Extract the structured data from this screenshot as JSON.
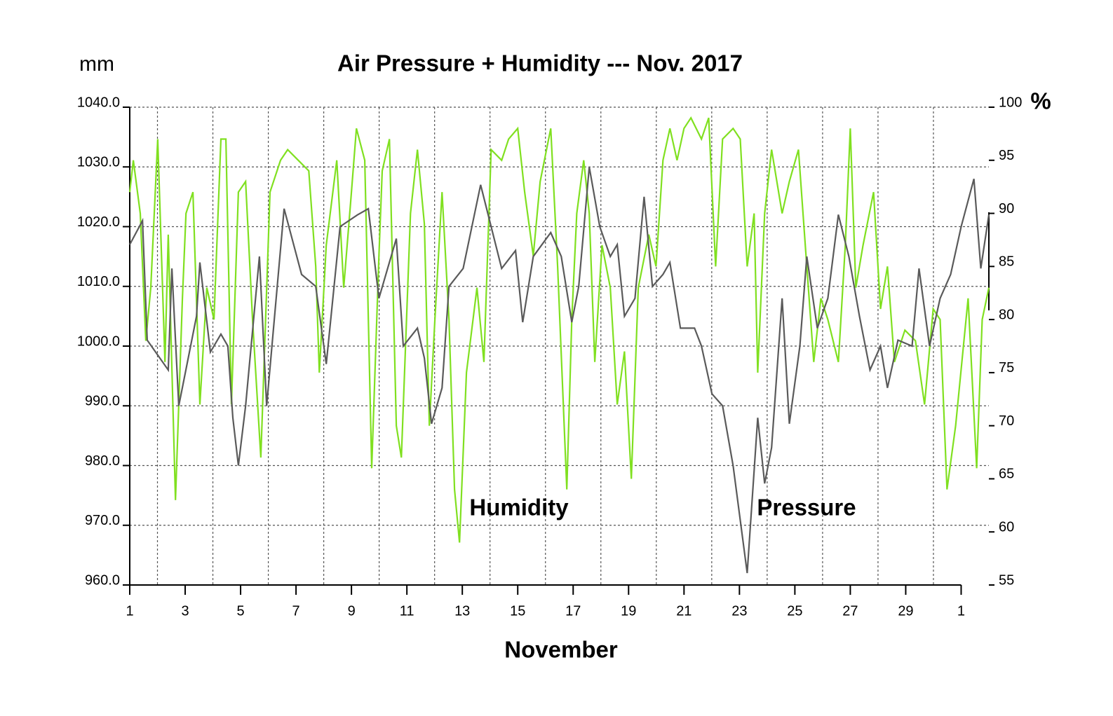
{
  "chart_data": {
    "type": "line",
    "title": "Air Pressure + Humidity --- Nov. 2017",
    "x_label": "November",
    "y_label": "mm",
    "y2_label": "%",
    "annotations": [
      "Humidity",
      "Pressure"
    ],
    "xlim": [
      1,
      32
    ],
    "xticks": [
      1,
      3,
      5,
      7,
      9,
      11,
      13,
      15,
      17,
      19,
      21,
      23,
      25,
      27,
      29,
      {
        "value": 31,
        "label": "1"
      }
    ],
    "ylim": [
      960,
      1040
    ],
    "yticks": [
      {
        "value": 960,
        "label": "960.0"
      },
      {
        "value": 970,
        "label": "970.0"
      },
      {
        "value": 980,
        "label": "980.0"
      },
      {
        "value": 990,
        "label": "990.0"
      },
      {
        "value": 1000,
        "label": "1000.0"
      },
      {
        "value": 1010,
        "label": "1010.0"
      },
      {
        "value": 1020,
        "label": "1020.0"
      },
      {
        "value": 1030,
        "label": "1030.0"
      },
      {
        "value": 1040,
        "label": "1040.0"
      }
    ],
    "y2lim": [
      55,
      100
    ],
    "y2ticks": [
      55,
      60,
      65,
      70,
      75,
      80,
      85,
      90,
      95,
      100
    ],
    "grid": true,
    "series": [
      {
        "name": "Pressure",
        "color": "#5a5a5a",
        "x": [
          1.0,
          1.46,
          1.63,
          2.39,
          2.52,
          2.77,
          3.41,
          3.53,
          3.91,
          4.29,
          4.54,
          4.72,
          4.92,
          5.18,
          5.68,
          5.94,
          6.57,
          7.2,
          7.71,
          8.09,
          8.59,
          9.23,
          9.61,
          9.99,
          10.62,
          10.87,
          11.38,
          11.63,
          11.89,
          12.27,
          12.52,
          13.03,
          13.66,
          14.04,
          14.42,
          14.92,
          15.18,
          15.56,
          16.19,
          16.57,
          16.95,
          17.2,
          17.58,
          17.96,
          18.34,
          18.59,
          18.85,
          19.23,
          19.56,
          19.86,
          20.24,
          20.49,
          20.87,
          21.38,
          21.63,
          22.01,
          22.39,
          22.77,
          23.28,
          23.66,
          23.91,
          24.16,
          24.54,
          24.8,
          25.18,
          25.43,
          25.81,
          26.19,
          26.57,
          26.95,
          27.33,
          27.71,
          28.09,
          28.34,
          28.72,
          29.23,
          29.48,
          29.86,
          30.24,
          30.62,
          31.0,
          31.46,
          31.71,
          32.0
        ],
        "values": [
          1017,
          1021,
          1001,
          996,
          1013,
          990,
          1005,
          1014,
          999,
          1002,
          1000,
          988,
          980,
          990,
          1015,
          990,
          1023,
          1012,
          1010,
          997,
          1020,
          1022,
          1023,
          1008,
          1018,
          1000,
          1003,
          998,
          987,
          993,
          1010,
          1013,
          1027,
          1020,
          1013,
          1016,
          1004,
          1015,
          1019,
          1015,
          1004,
          1010,
          1030,
          1020,
          1015,
          1017,
          1005,
          1008,
          1025,
          1010,
          1012,
          1014,
          1003,
          1003,
          1000,
          992,
          990,
          980,
          962,
          988,
          977,
          983,
          1008,
          987,
          1000,
          1015,
          1003,
          1008,
          1022,
          1015,
          1005,
          996,
          1000,
          993,
          1001,
          1000,
          1013,
          1000,
          1008,
          1012,
          1020,
          1028,
          1013,
          1022
        ]
      },
      {
        "name": "Humidity",
        "color": "#80e020",
        "axis": "y2",
        "x": [
          1.0,
          1.13,
          1.38,
          1.58,
          1.76,
          2.01,
          2.27,
          2.39,
          2.65,
          2.9,
          3.03,
          3.28,
          3.53,
          3.78,
          4.04,
          4.29,
          4.47,
          4.67,
          4.92,
          5.18,
          5.43,
          5.73,
          6.06,
          6.44,
          6.7,
          7.08,
          7.46,
          7.71,
          7.84,
          8.09,
          8.47,
          8.72,
          8.97,
          9.18,
          9.48,
          9.73,
          9.99,
          10.11,
          10.37,
          10.62,
          10.8,
          11.13,
          11.38,
          11.63,
          11.81,
          12.01,
          12.27,
          12.52,
          12.72,
          12.9,
          13.15,
          13.53,
          13.78,
          14.04,
          14.42,
          14.67,
          15.0,
          15.25,
          15.56,
          15.81,
          16.19,
          16.44,
          16.77,
          16.95,
          17.13,
          17.38,
          17.58,
          17.78,
          18.04,
          18.34,
          18.59,
          18.85,
          19.1,
          19.35,
          19.73,
          19.99,
          20.24,
          20.49,
          20.75,
          21.0,
          21.25,
          21.63,
          21.89,
          22.14,
          22.39,
          22.77,
          23.03,
          23.28,
          23.53,
          23.66,
          23.91,
          24.16,
          24.54,
          24.8,
          25.13,
          25.43,
          25.68,
          25.94,
          26.19,
          26.57,
          26.82,
          27.0,
          27.2,
          27.46,
          27.84,
          28.09,
          28.34,
          28.59,
          28.97,
          29.35,
          29.68,
          29.99,
          30.24,
          30.49,
          30.8,
          31.25,
          31.56,
          31.76,
          32.0
        ],
        "values": [
          92,
          95,
          90,
          78,
          83,
          97,
          76,
          88,
          63,
          82,
          90,
          92,
          72,
          83,
          80,
          97,
          97,
          72,
          92,
          93,
          80,
          67,
          92,
          95,
          96,
          95,
          94,
          85,
          75,
          87,
          95,
          83,
          91,
          98,
          95,
          66,
          86,
          94,
          97,
          70,
          67,
          90,
          96,
          89,
          70,
          80,
          92,
          80,
          64,
          59,
          75,
          83,
          76,
          96,
          95,
          97,
          98,
          92,
          86,
          93,
          98,
          85,
          64,
          80,
          90,
          95,
          90,
          76,
          87,
          83,
          72,
          77,
          65,
          83,
          88,
          85,
          95,
          98,
          95,
          98,
          99,
          97,
          99,
          85,
          97,
          98,
          97,
          85,
          90,
          75,
          90,
          96,
          90,
          93,
          96,
          85,
          76,
          82,
          80,
          76,
          87,
          98,
          83,
          87,
          92,
          81,
          85,
          76,
          79,
          78,
          72,
          81,
          80,
          64,
          70,
          82,
          66,
          80,
          83
        ]
      }
    ]
  }
}
